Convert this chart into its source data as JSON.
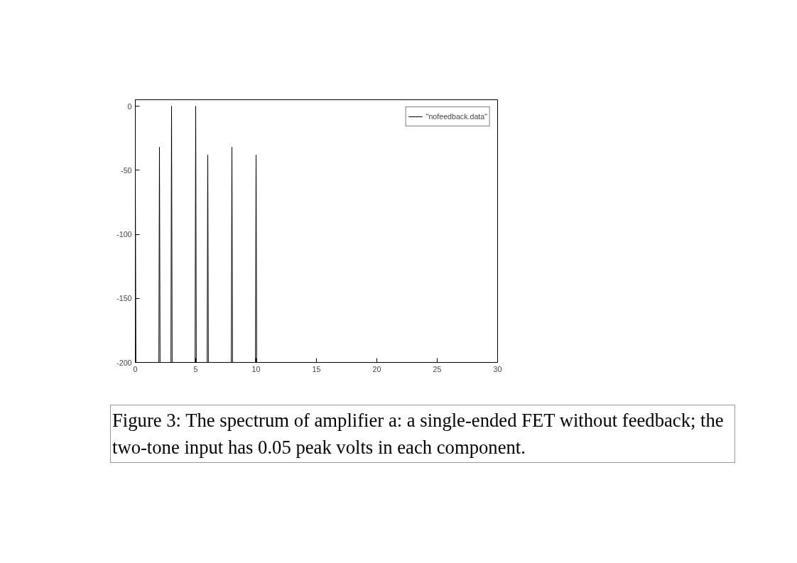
{
  "chart_data": {
    "type": "line",
    "xlim": [
      0,
      30
    ],
    "ylim": [
      -200,
      5
    ],
    "xticks": [
      0,
      5,
      10,
      15,
      20,
      25,
      30
    ],
    "yticks": [
      0,
      -50,
      -100,
      -150,
      -200
    ],
    "grid": false,
    "legend": "top right",
    "marker": "none",
    "line_style": "solid",
    "series": [
      {
        "name": "\"nofeedback.data\"",
        "color": "#000000",
        "x": [
          0,
          0.05,
          1.95,
          2,
          2.05,
          2.95,
          3,
          3.05,
          4.95,
          5,
          5.05,
          5.95,
          6,
          6.05,
          7.95,
          8,
          8.05,
          9.95,
          10,
          10.05,
          30
        ],
        "values": [
          -50,
          -200,
          -200,
          -32,
          -200,
          -200,
          0,
          -200,
          -200,
          0,
          -200,
          -200,
          -38,
          -200,
          -200,
          -32,
          -200,
          -200,
          -38,
          -200,
          -200
        ]
      }
    ],
    "annotations": [
      "Figure 3: The spectrum of amplifier a: a single-ended FET without feedback; the two-tone input has 0.05 peak volts in each component."
    ]
  }
}
